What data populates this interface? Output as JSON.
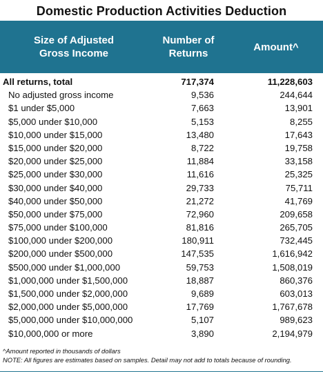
{
  "title": "Domestic Production Activities Deduction",
  "header": {
    "col1": "Size of Adjusted Gross Income",
    "col2": "Number of Returns",
    "col3": "Amount^"
  },
  "rows": [
    {
      "label": "All returns, total",
      "returns": "717,374",
      "amount": "11,228,603"
    },
    {
      "label": "No adjusted gross income",
      "returns": "9,536",
      "amount": "244,644"
    },
    {
      "label": "$1 under $5,000",
      "returns": "7,663",
      "amount": "13,901"
    },
    {
      "label": "$5,000 under $10,000",
      "returns": "5,153",
      "amount": "8,255"
    },
    {
      "label": "$10,000 under $15,000",
      "returns": "13,480",
      "amount": "17,643"
    },
    {
      "label": "$15,000 under $20,000",
      "returns": "8,722",
      "amount": "19,758"
    },
    {
      "label": "$20,000 under $25,000",
      "returns": "11,884",
      "amount": "33,158"
    },
    {
      "label": "$25,000 under $30,000",
      "returns": "11,616",
      "amount": "25,325"
    },
    {
      "label": "$30,000 under $40,000",
      "returns": "29,733",
      "amount": "75,711"
    },
    {
      "label": "$40,000 under $50,000",
      "returns": "21,272",
      "amount": "41,769"
    },
    {
      "label": "$50,000 under $75,000",
      "returns": "72,960",
      "amount": "209,658"
    },
    {
      "label": "$75,000 under $100,000",
      "returns": "81,816",
      "amount": "265,705"
    },
    {
      "label": "$100,000 under $200,000",
      "returns": "180,911",
      "amount": "732,445"
    },
    {
      "label": "$200,000 under $500,000",
      "returns": "147,535",
      "amount": "1,616,942"
    },
    {
      "label": "$500,000 under $1,000,000",
      "returns": "59,753",
      "amount": "1,508,019"
    },
    {
      "label": "$1,000,000 under $1,500,000",
      "returns": "18,887",
      "amount": "860,376"
    },
    {
      "label": "$1,500,000 under $2,000,000",
      "returns": "9,689",
      "amount": "603,013"
    },
    {
      "label": "$2,000,000 under $5,000,000",
      "returns": "17,769",
      "amount": "1,767,678"
    },
    {
      "label": "$5,000,000 under $10,000,000",
      "returns": "5,107",
      "amount": "989,623"
    },
    {
      "label": "$10,000,000 or more",
      "returns": "3,890",
      "amount": "2,194,979"
    }
  ],
  "notes": {
    "amount_note": "^Amount reported in thousands of dollars",
    "note": "NOTE: All figures are estimates based on samples. Detail may not add to totals because of rounding."
  },
  "colors": {
    "header_bg": "#1f7390",
    "header_text": "#ffffff"
  }
}
